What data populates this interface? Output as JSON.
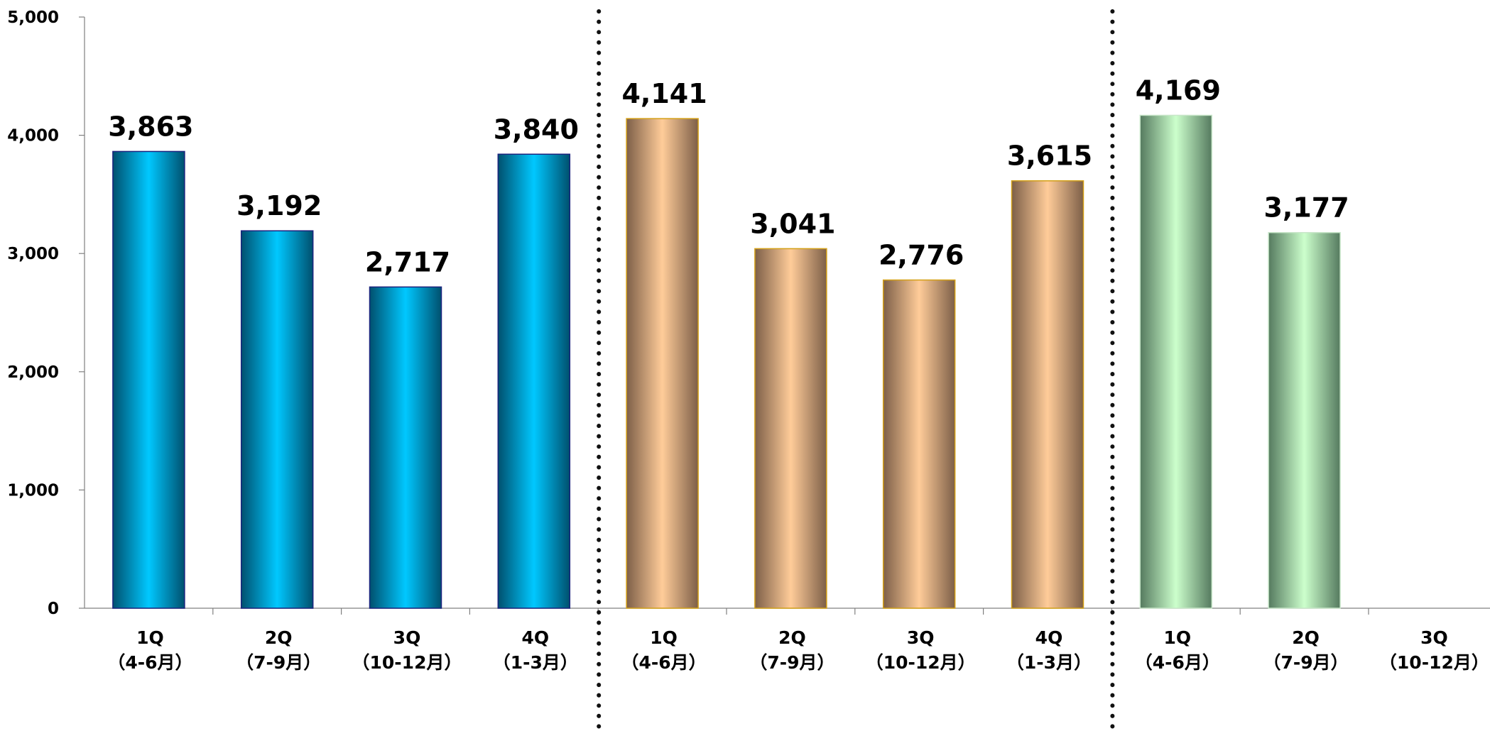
{
  "chart_data": {
    "type": "bar",
    "title": "",
    "xlabel": "",
    "ylabel": "",
    "ylim": [
      0,
      5000
    ],
    "yticks": [
      "0",
      "1,000",
      "2,000",
      "3,000",
      "4,000",
      "5,000"
    ],
    "grid": false,
    "legend": "none",
    "groups": [
      {
        "colors": {
          "light": "#00c8ff",
          "dark": "#00506e",
          "edge": "#1a237e"
        },
        "bars": [
          {
            "q": "1Q",
            "months": "（4-6月）",
            "value": 3863,
            "label": "3,863"
          },
          {
            "q": "2Q",
            "months": "（7-9月）",
            "value": 3192,
            "label": "3,192"
          },
          {
            "q": "3Q",
            "months": "（10-12月）",
            "value": 2717,
            "label": "2,717"
          },
          {
            "q": "4Q",
            "months": "（1-3月）",
            "value": 3840,
            "label": "3,840"
          }
        ]
      },
      {
        "colors": {
          "light": "#ffcc99",
          "dark": "#7d5f48",
          "edge": "#d4a017"
        },
        "bars": [
          {
            "q": "1Q",
            "months": "（4-6月）",
            "value": 4141,
            "label": "4,141"
          },
          {
            "q": "2Q",
            "months": "（7-9月）",
            "value": 3041,
            "label": "3,041"
          },
          {
            "q": "3Q",
            "months": "（10-12月）",
            "value": 2776,
            "label": "2,776"
          },
          {
            "q": "4Q",
            "months": "（1-3月）",
            "value": 3615,
            "label": "3,615"
          }
        ]
      },
      {
        "colors": {
          "light": "#ccffcc",
          "dark": "#557a5f",
          "edge": "#c8e6c9"
        },
        "bars": [
          {
            "q": "1Q",
            "months": "（4-6月）",
            "value": 4169,
            "label": "4,169"
          },
          {
            "q": "2Q",
            "months": "（7-9月）",
            "value": 3177,
            "label": "3,177"
          },
          {
            "q": "3Q",
            "months": "（10-12月）",
            "value": null,
            "label": ""
          }
        ]
      }
    ]
  }
}
